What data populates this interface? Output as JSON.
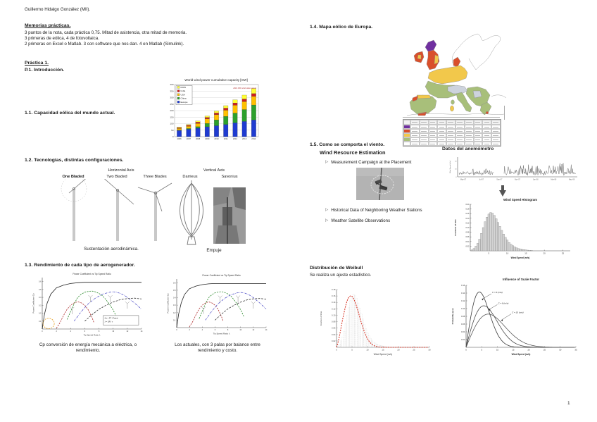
{
  "page": {
    "number": "1"
  },
  "header": {
    "author_line": "Guillermo Hidalgo González (MII)."
  },
  "memorias": {
    "title": "Memorias prácticas.",
    "lines": [
      "3 puntos de la nota, cada práctica 0,75. Mitad de asistencia, otra mitad de memoria.",
      "3 primeras de eólica, 4 de fotovoltaica.",
      "2 primeras en Excel o Matlab. 3 con software que nos dan. 4 en Matlab (Simulink)."
    ]
  },
  "practica": {
    "title": "Práctica 1.",
    "subtitle": "P.1. Introducción."
  },
  "sections": {
    "s11": {
      "heading": "1.1. Capacidad eólica del mundo actual."
    },
    "s12": {
      "heading": "1.2. Tecnologías, distintas configuraciones.",
      "group_labels": [
        "Horizontal Axis",
        "Vertical Axis"
      ],
      "type_labels": [
        "One Bladed",
        "Two Bladed",
        "Three Blades",
        "Darrieus",
        "Savonius"
      ],
      "caption_left": "Sustentación aerodinámica.",
      "caption_right": "Empuje"
    },
    "s13": {
      "heading": "1.3. Rendimiento de cada tipo de aerogenerador.",
      "caption_left_1": "Cp conversión de energía mecánica a eléctrica, o",
      "caption_left_2": "rendimiento.",
      "caption_right_1": "Los actuales, con 3 palas por balance entre",
      "caption_right_2": "rendimiento y costo."
    },
    "s14": {
      "heading": "1.4. Mapa eólico de Europa."
    },
    "s15": {
      "heading": "1.5. Como se comporta el viento.",
      "slide_title": "Wind Resource Estimation",
      "bullets": [
        "Measurement Campaign at the Placement",
        "Historical Data of Neighboring Weather Stations",
        "Weather Satellite Observations"
      ],
      "anemometer_title": "Datos del anemómetro"
    },
    "weibull": {
      "heading": "Distribución de Weibull",
      "note": "Se realiza un ajuste estadístico."
    }
  },
  "icons": {
    "bullet_arrow": "▷"
  },
  "map": {
    "palette": {
      "purple": "#7030a0",
      "red": "#d94f2b",
      "yellow": "#f2c84b",
      "green": "#a8bf7a",
      "grayblue": "#cdd3dd",
      "white": "#ffffff",
      "coast": "#8a8a8a"
    },
    "legend_row_colors": [
      "#7030a0",
      "#d94f2b",
      "#f2c84b",
      "#a8bf7a",
      "#ffffff"
    ],
    "legend_column_groups": 5
  },
  "chart_data": [
    {
      "id": "world_capacity",
      "type": "bar",
      "stacked": true,
      "title": "World wind power cumulative capacity [GW]",
      "annotation": "2014 JRC wind status report",
      "annotation_color": "#b03030",
      "categories": [
        2006,
        2007,
        2008,
        2009,
        2010,
        2011,
        2012,
        2013,
        2014
      ],
      "stack_order": [
        "Europe",
        "China",
        "USA",
        "India",
        "ROW"
      ],
      "legend_order": [
        "ROW",
        "India",
        "USA",
        "China",
        "Europe"
      ],
      "series": [
        {
          "name": "Europe",
          "color": "#1f3bd0",
          "values": [
            48,
            57,
            65,
            76,
            84,
            94,
            106,
            117,
            129
          ]
        },
        {
          "name": "China",
          "color": "#2ca02c",
          "values": [
            3,
            6,
            12,
            26,
            45,
            62,
            75,
            91,
            114
          ]
        },
        {
          "name": "USA",
          "color": "#ffc000",
          "values": [
            12,
            17,
            25,
            35,
            40,
            47,
            60,
            61,
            66
          ]
        },
        {
          "name": "India",
          "color": "#cc1f1f",
          "values": [
            6,
            8,
            10,
            11,
            13,
            16,
            18,
            20,
            22
          ]
        },
        {
          "name": "ROW",
          "color": "#ffff33",
          "values": [
            5,
            6,
            9,
            11,
            15,
            19,
            24,
            30,
            39
          ]
        }
      ],
      "ylim": [
        0,
        400
      ],
      "ytick_step": 50,
      "grid": true,
      "legend_position": "top-left"
    },
    {
      "id": "cp_left",
      "type": "line",
      "title": "Power Coefficient vs Tip Speed Ratio",
      "xlabel": "Tip Speed Ratio λ",
      "ylabel": "Power Coefficient Cp",
      "xlim": [
        0,
        14
      ],
      "ylim": [
        0,
        0.65
      ],
      "xticks": [
        0,
        2,
        4,
        6,
        8,
        10,
        12,
        14
      ],
      "yticks": [
        0.1,
        0.2,
        0.3,
        0.4,
        0.5,
        0.6
      ],
      "equation_lines": [
        "Cp = PT / Pwind",
        "λ = ΩR / v"
      ],
      "savonius_region": {
        "x": 0.9,
        "y": 0.07,
        "rx": 0.8,
        "ry": 0.065,
        "color": "#e8a020"
      },
      "series": [
        {
          "name": "Betz ideal",
          "color": "#222222",
          "dash": "",
          "points": [
            [
              0,
              0
            ],
            [
              0.3,
              0.18
            ],
            [
              0.7,
              0.33
            ],
            [
              1.2,
              0.44
            ],
            [
              2,
              0.52
            ],
            [
              3,
              0.555
            ],
            [
              4,
              0.575
            ],
            [
              5,
              0.585
            ],
            [
              6,
              0.59
            ],
            [
              8,
              0.59
            ],
            [
              10,
              0.59
            ],
            [
              12,
              0.59
            ],
            [
              14,
              0.59
            ]
          ]
        },
        {
          "name": "Darrieus",
          "color": "#b03030",
          "dash": "2.2,1.4",
          "points": [
            [
              2,
              0.01
            ],
            [
              2.5,
              0.08
            ],
            [
              3,
              0.17
            ],
            [
              3.5,
              0.25
            ],
            [
              4,
              0.3
            ],
            [
              4.5,
              0.33
            ],
            [
              5,
              0.345
            ],
            [
              5.5,
              0.33
            ],
            [
              6,
              0.3
            ],
            [
              6.5,
              0.24
            ],
            [
              7,
              0.15
            ],
            [
              7.3,
              0.08
            ]
          ]
        },
        {
          "name": "Three-bladed",
          "color": "#2e8b2e",
          "dash": "2.2,1.4",
          "points": [
            [
              3.5,
              0.12
            ],
            [
              4,
              0.22
            ],
            [
              4.5,
              0.32
            ],
            [
              5,
              0.4
            ],
            [
              5.5,
              0.44
            ],
            [
              6,
              0.465
            ],
            [
              6.5,
              0.475
            ],
            [
              7,
              0.48
            ],
            [
              7.5,
              0.47
            ],
            [
              8,
              0.45
            ],
            [
              8.5,
              0.42
            ],
            [
              9,
              0.37
            ],
            [
              9.5,
              0.31
            ],
            [
              10,
              0.24
            ],
            [
              10.5,
              0.15
            ]
          ]
        },
        {
          "name": "Two-bladed",
          "color": "#5050c8",
          "dash": "3,1.2,0.6,1.2",
          "points": [
            [
              4.5,
              0.1
            ],
            [
              5.5,
              0.22
            ],
            [
              6.5,
              0.32
            ],
            [
              7.5,
              0.39
            ],
            [
              8.5,
              0.44
            ],
            [
              9.5,
              0.465
            ],
            [
              10,
              0.47
            ],
            [
              10.5,
              0.465
            ],
            [
              11,
              0.45
            ],
            [
              11.5,
              0.43
            ],
            [
              12,
              0.4
            ],
            [
              13,
              0.33
            ],
            [
              14,
              0.25
            ]
          ]
        },
        {
          "name": "One-bladed",
          "color": "#333333",
          "dash": "2.8,1.6",
          "points": [
            [
              6,
              0.1
            ],
            [
              7,
              0.18
            ],
            [
              8,
              0.25
            ],
            [
              9,
              0.3
            ],
            [
              10,
              0.34
            ],
            [
              11,
              0.37
            ],
            [
              12,
              0.385
            ],
            [
              13,
              0.39
            ],
            [
              14,
              0.38
            ]
          ]
        }
      ]
    },
    {
      "id": "cp_right",
      "type": "line",
      "title": "Power Coefficient vs Tip Speed Ratio",
      "xlabel": "Tip Speed Ratio λ",
      "ylabel": "Power Coefficient Cp",
      "xlim": [
        0,
        14
      ],
      "ylim": [
        0,
        0.65
      ],
      "xticks": [
        0,
        2,
        4,
        6,
        8,
        10,
        12,
        14
      ],
      "yticks": [
        0.1,
        0.2,
        0.3,
        0.4,
        0.5,
        0.6
      ],
      "series_ref": "cp_left"
    },
    {
      "id": "anemometer_series",
      "type": "line",
      "ylabel": "Wind Speed (m/s)",
      "x_ticklabels": [
        "May-07",
        "Jul-07",
        "Sep-07",
        "Nov-07",
        "Jan-08",
        "Mar-08",
        "May-08"
      ],
      "ylim": [
        0,
        25
      ],
      "yticks": [
        0,
        10,
        20
      ],
      "note": "stochastic anemometer wind-speed trace with a measurement gap near Oct-07",
      "gap": [
        0.3,
        0.385
      ],
      "n_points": 250,
      "seed": 7
    },
    {
      "id": "wind_histogram",
      "type": "bar",
      "title": "Wind Speed Histogram",
      "xlabel": "Wind Speed (m/s)",
      "ylabel": "Fractions of time",
      "xlim": [
        0,
        27
      ],
      "ylim": [
        0,
        0.2
      ],
      "xticks": [
        5,
        10,
        15,
        20,
        25
      ],
      "yticks": [
        0.02,
        0.04,
        0.06,
        0.08,
        0.1,
        0.12,
        0.14,
        0.16,
        0.18,
        0.2
      ],
      "bin_width": 0.5,
      "x_start": 0.25,
      "values": [
        0.004,
        0.01,
        0.02,
        0.032,
        0.05,
        0.075,
        0.1,
        0.125,
        0.145,
        0.158,
        0.165,
        0.162,
        0.152,
        0.138,
        0.122,
        0.105,
        0.088,
        0.072,
        0.058,
        0.046,
        0.036,
        0.028,
        0.022,
        0.017,
        0.013,
        0.01,
        0.008,
        0.006,
        0.005,
        0.004,
        0.003,
        0.002,
        0.002
      ]
    },
    {
      "id": "weibull_fit",
      "type": "line",
      "xlabel": "Wind Speed (m/s)",
      "ylabel": "Fraction of time",
      "xlim": [
        0,
        30
      ],
      "ylim": [
        0,
        0.18
      ],
      "xticks": [
        0,
        5,
        10,
        15,
        20,
        25,
        30
      ],
      "yticks": [
        0.02,
        0.04,
        0.06,
        0.08,
        0.1,
        0.12,
        0.14,
        0.16,
        0.18
      ],
      "weibull": {
        "k": 2.3,
        "c": 5.9
      },
      "color": "#d83c2e",
      "background_histogram_ref": "wind_histogram"
    },
    {
      "id": "scale_factor",
      "type": "line",
      "title": "Influence of Scale Factor",
      "xlabel": "Wind Speed (m/s)",
      "ylabel": "Probability (p.u)",
      "xlim": [
        0,
        35
      ],
      "ylim": [
        0,
        0.16
      ],
      "xticks": [
        0,
        5,
        10,
        15,
        20,
        25,
        30,
        35
      ],
      "yticks": [
        0.02,
        0.04,
        0.06,
        0.08,
        0.1,
        0.12,
        0.14,
        0.16
      ],
      "curves": [
        {
          "label": "C = 6 (m/s)",
          "k": 2,
          "c": 6,
          "color": "#3a3a3a",
          "label_xy": [
            8.3,
            0.14
          ],
          "tip_xy": [
            5.0,
            0.124
          ]
        },
        {
          "label": "C = 8 (m/s)",
          "k": 2,
          "c": 8,
          "color": "#4a4a4a",
          "label_xy": [
            10.2,
            0.112
          ],
          "tip_xy": [
            7.2,
            0.097
          ]
        },
        {
          "label": "C = 10 (m/s)",
          "k": 2,
          "c": 10,
          "color": "#5a5a5a",
          "label_xy": [
            14.6,
            0.088
          ],
          "tip_xy": [
            11.2,
            0.07
          ]
        }
      ]
    }
  ]
}
